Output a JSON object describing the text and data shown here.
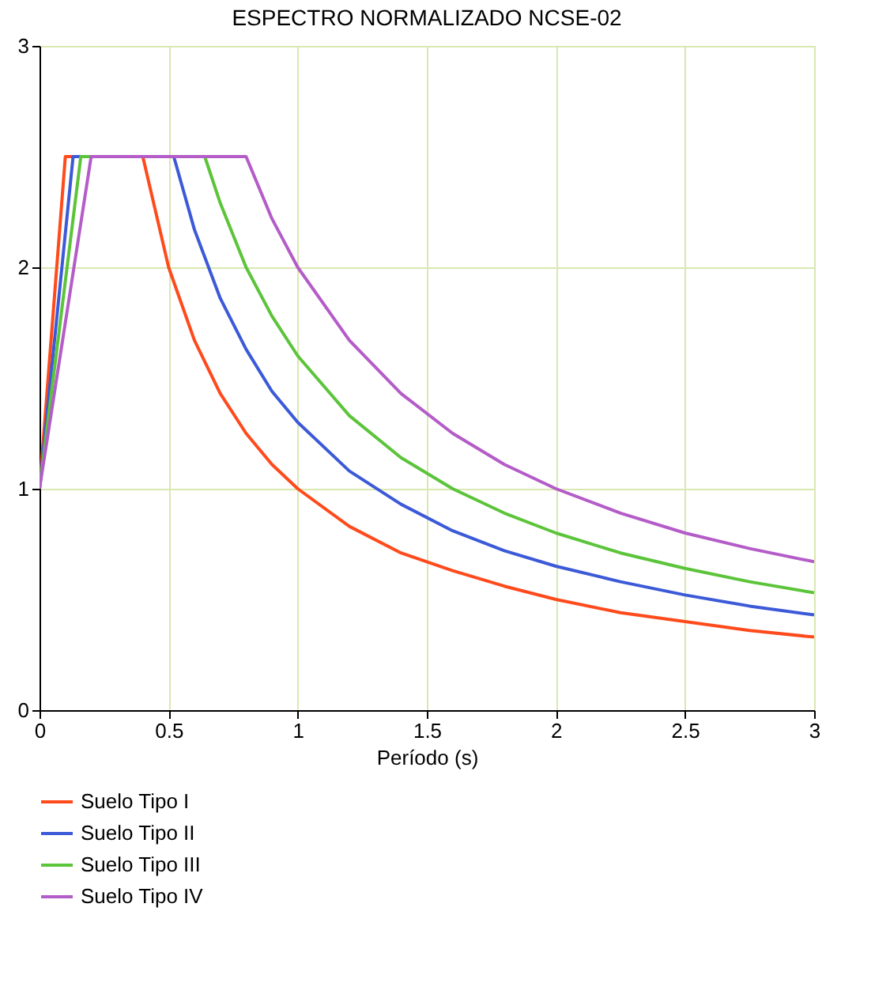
{
  "chart_data": {
    "type": "line",
    "title": "ESPECTRO NORMALIZADO NCSE-02",
    "xlabel": "Período (s)",
    "xlim": [
      0,
      3
    ],
    "xticks": [
      0,
      0.5,
      1,
      1.5,
      2,
      2.5,
      3
    ],
    "ylim": [
      0,
      3
    ],
    "yticks": [
      0,
      1,
      2,
      3
    ],
    "grid": true,
    "legend": "bottom left",
    "marker": "none",
    "line_style": "solid",
    "series": [
      {
        "name": "Suelo Tipo I",
        "color": "#ff4a1c",
        "x": [
          0,
          0.1,
          0.4,
          0.5,
          0.6,
          0.7,
          0.8,
          0.9,
          1.0,
          1.2,
          1.4,
          1.6,
          1.8,
          2.0,
          2.25,
          2.5,
          2.75,
          3.0
        ],
        "values": [
          1,
          2.5,
          2.5,
          2.0,
          1.67,
          1.43,
          1.25,
          1.11,
          1.0,
          0.83,
          0.71,
          0.63,
          0.56,
          0.5,
          0.44,
          0.4,
          0.36,
          0.33
        ]
      },
      {
        "name": "Suelo Tipo II",
        "color": "#3c5ad8",
        "x": [
          0,
          0.13,
          0.52,
          0.6,
          0.7,
          0.8,
          0.9,
          1.0,
          1.2,
          1.4,
          1.6,
          1.8,
          2.0,
          2.25,
          2.5,
          2.75,
          3.0
        ],
        "values": [
          1,
          2.5,
          2.5,
          2.17,
          1.86,
          1.63,
          1.44,
          1.3,
          1.08,
          0.93,
          0.81,
          0.72,
          0.65,
          0.58,
          0.52,
          0.47,
          0.43
        ]
      },
      {
        "name": "Suelo Tipo III",
        "color": "#5cc43a",
        "x": [
          0,
          0.16,
          0.64,
          0.7,
          0.8,
          0.9,
          1.0,
          1.2,
          1.4,
          1.6,
          1.8,
          2.0,
          2.25,
          2.5,
          2.75,
          3.0
        ],
        "values": [
          1,
          2.5,
          2.5,
          2.29,
          2.0,
          1.78,
          1.6,
          1.33,
          1.14,
          1.0,
          0.89,
          0.8,
          0.71,
          0.64,
          0.58,
          0.53
        ]
      },
      {
        "name": "Suelo Tipo IV",
        "color": "#b45cc8",
        "x": [
          0,
          0.2,
          0.8,
          0.9,
          1.0,
          1.2,
          1.4,
          1.6,
          1.8,
          2.0,
          2.25,
          2.5,
          2.75,
          3.0
        ],
        "values": [
          1,
          2.5,
          2.5,
          2.22,
          2.0,
          1.67,
          1.43,
          1.25,
          1.11,
          1.0,
          0.89,
          0.8,
          0.73,
          0.67
        ]
      }
    ]
  }
}
